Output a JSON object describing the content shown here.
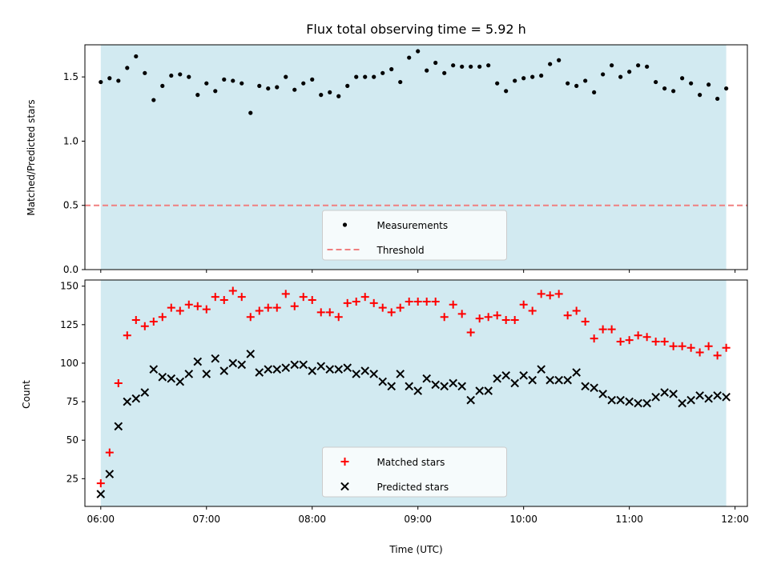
{
  "chart_data": {
    "title": "Flux total observing time = 5.92 h",
    "xlabel": "Time (UTC)",
    "x_tick_labels": [
      "06:00",
      "07:00",
      "08:00",
      "09:00",
      "10:00",
      "11:00",
      "12:00"
    ],
    "xlim": [
      "05:51",
      "12:07"
    ],
    "observing_window": [
      "06:00",
      "11:55"
    ],
    "colors": {
      "window": "#add8e6",
      "measurements": "#000000",
      "threshold": "#f08080",
      "matched": "#ff0000",
      "predicted": "#000000"
    },
    "panels": [
      {
        "type": "scatter",
        "ylabel": "Matched/Predicted stars",
        "ylim": [
          0,
          1.75
        ],
        "y_ticks": [
          0.0,
          0.5,
          1.0,
          1.5
        ],
        "y_tick_labels": [
          "0.0",
          "0.5",
          "1.0",
          "1.5"
        ],
        "threshold": 0.5,
        "legend": {
          "position": "lower center",
          "entries": [
            "Measurements",
            "Threshold"
          ]
        },
        "series": [
          {
            "name": "Measurements",
            "marker": "dot",
            "x": [
              "06:00",
              "06:05",
              "06:10",
              "06:15",
              "06:20",
              "06:25",
              "06:30",
              "06:35",
              "06:40",
              "06:45",
              "06:50",
              "06:55",
              "07:00",
              "07:05",
              "07:10",
              "07:15",
              "07:20",
              "07:25",
              "07:30",
              "07:35",
              "07:40",
              "07:45",
              "07:50",
              "07:55",
              "08:00",
              "08:05",
              "08:10",
              "08:15",
              "08:20",
              "08:25",
              "08:30",
              "08:35",
              "08:40",
              "08:45",
              "08:50",
              "08:55",
              "09:00",
              "09:05",
              "09:10",
              "09:15",
              "09:20",
              "09:25",
              "09:30",
              "09:35",
              "09:40",
              "09:45",
              "09:50",
              "09:55",
              "10:00",
              "10:05",
              "10:10",
              "10:15",
              "10:20",
              "10:25",
              "10:30",
              "10:35",
              "10:40",
              "10:45",
              "10:50",
              "10:55",
              "11:00",
              "11:05",
              "11:10",
              "11:15",
              "11:20",
              "11:25",
              "11:30",
              "11:35",
              "11:40",
              "11:45",
              "11:50",
              "11:55"
            ],
            "y": [
              1.46,
              1.49,
              1.47,
              1.57,
              1.66,
              1.53,
              1.32,
              1.43,
              1.51,
              1.52,
              1.5,
              1.36,
              1.45,
              1.39,
              1.48,
              1.47,
              1.45,
              1.22,
              1.43,
              1.41,
              1.42,
              1.5,
              1.4,
              1.45,
              1.48,
              1.36,
              1.38,
              1.35,
              1.43,
              1.5,
              1.5,
              1.5,
              1.53,
              1.56,
              1.46,
              1.65,
              1.7,
              1.55,
              1.61,
              1.53,
              1.59,
              1.58,
              1.58,
              1.58,
              1.59,
              1.45,
              1.39,
              1.47,
              1.49,
              1.5,
              1.51,
              1.6,
              1.63,
              1.45,
              1.43,
              1.47,
              1.38,
              1.52,
              1.59,
              1.5,
              1.54,
              1.59,
              1.58,
              1.46,
              1.41,
              1.39,
              1.49,
              1.45,
              1.36,
              1.44,
              1.33,
              1.41
            ]
          }
        ]
      },
      {
        "type": "scatter",
        "ylabel": "Count",
        "ylim": [
          7,
          154
        ],
        "y_ticks": [
          25,
          50,
          75,
          100,
          125,
          150
        ],
        "y_tick_labels": [
          "25",
          "50",
          "75",
          "100",
          "125",
          "150"
        ],
        "legend": {
          "position": "lower center",
          "entries": [
            "Matched stars",
            "Predicted stars"
          ]
        },
        "series": [
          {
            "name": "Matched stars",
            "marker": "plus",
            "x": [
              "06:00",
              "06:05",
              "06:10",
              "06:15",
              "06:20",
              "06:25",
              "06:30",
              "06:35",
              "06:40",
              "06:45",
              "06:50",
              "06:55",
              "07:00",
              "07:05",
              "07:10",
              "07:15",
              "07:20",
              "07:25",
              "07:30",
              "07:35",
              "07:40",
              "07:45",
              "07:50",
              "07:55",
              "08:00",
              "08:05",
              "08:10",
              "08:15",
              "08:20",
              "08:25",
              "08:30",
              "08:35",
              "08:40",
              "08:45",
              "08:50",
              "08:55",
              "09:00",
              "09:05",
              "09:10",
              "09:15",
              "09:20",
              "09:25",
              "09:30",
              "09:35",
              "09:40",
              "09:45",
              "09:50",
              "09:55",
              "10:00",
              "10:05",
              "10:10",
              "10:15",
              "10:20",
              "10:25",
              "10:30",
              "10:35",
              "10:40",
              "10:45",
              "10:50",
              "10:55",
              "11:00",
              "11:05",
              "11:10",
              "11:15",
              "11:20",
              "11:25",
              "11:30",
              "11:35",
              "11:40",
              "11:45",
              "11:50",
              "11:55"
            ],
            "y": [
              22,
              42,
              87,
              118,
              128,
              124,
              127,
              130,
              136,
              134,
              138,
              137,
              135,
              143,
              141,
              147,
              143,
              130,
              134,
              136,
              136,
              145,
              137,
              143,
              141,
              133,
              133,
              130,
              139,
              140,
              143,
              139,
              136,
              133,
              136,
              140,
              140,
              140,
              140,
              130,
              138,
              132,
              120,
              129,
              130,
              131,
              128,
              128,
              138,
              134,
              145,
              144,
              145,
              131,
              134,
              127,
              116,
              122,
              122,
              114,
              115,
              118,
              117,
              114,
              114,
              111,
              111,
              110,
              107,
              111,
              105,
              110
            ]
          },
          {
            "name": "Predicted stars",
            "marker": "x",
            "x": [
              "06:00",
              "06:05",
              "06:10",
              "06:15",
              "06:20",
              "06:25",
              "06:30",
              "06:35",
              "06:40",
              "06:45",
              "06:50",
              "06:55",
              "07:00",
              "07:05",
              "07:10",
              "07:15",
              "07:20",
              "07:25",
              "07:30",
              "07:35",
              "07:40",
              "07:45",
              "07:50",
              "07:55",
              "08:00",
              "08:05",
              "08:10",
              "08:15",
              "08:20",
              "08:25",
              "08:30",
              "08:35",
              "08:40",
              "08:45",
              "08:50",
              "08:55",
              "09:00",
              "09:05",
              "09:10",
              "09:15",
              "09:20",
              "09:25",
              "09:30",
              "09:35",
              "09:40",
              "09:45",
              "09:50",
              "09:55",
              "10:00",
              "10:05",
              "10:10",
              "10:15",
              "10:20",
              "10:25",
              "10:30",
              "10:35",
              "10:40",
              "10:45",
              "10:50",
              "10:55",
              "11:00",
              "11:05",
              "11:10",
              "11:15",
              "11:20",
              "11:25",
              "11:30",
              "11:35",
              "11:40",
              "11:45",
              "11:50",
              "11:55"
            ],
            "y": [
              15,
              28,
              59,
              75,
              77,
              81,
              96,
              91,
              90,
              88,
              93,
              101,
              93,
              103,
              95,
              100,
              99,
              106,
              94,
              96,
              96,
              97,
              99,
              99,
              95,
              98,
              96,
              96,
              97,
              93,
              95,
              93,
              88,
              85,
              93,
              85,
              82,
              90,
              86,
              85,
              87,
              85,
              76,
              82,
              82,
              90,
              92,
              87,
              92,
              89,
              96,
              89,
              89,
              89,
              94,
              85,
              84,
              80,
              76,
              76,
              75,
              74,
              74,
              78,
              81,
              80,
              74,
              76,
              79,
              77,
              79,
              78
            ]
          }
        ]
      }
    ]
  }
}
